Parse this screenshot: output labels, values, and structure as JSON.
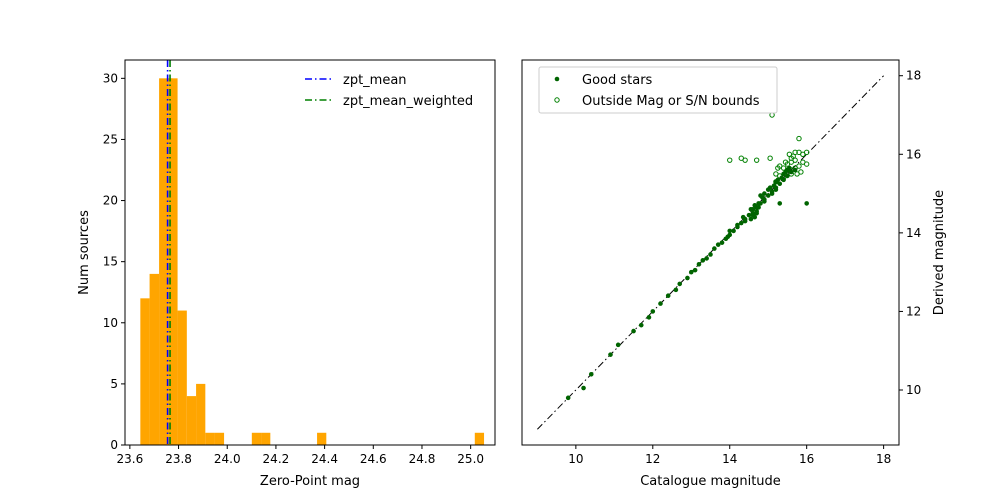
{
  "chart_data": [
    {
      "type": "bar",
      "subtype": "histogram",
      "xlabel": "Zero-Point mag",
      "ylabel": "Num sources",
      "xlim": [
        23.58,
        25.1
      ],
      "ylim": [
        0,
        31.5
      ],
      "xticks": [
        "23.6",
        "23.8",
        "24.0",
        "24.2",
        "24.4",
        "24.6",
        "24.8",
        "25.0"
      ],
      "xtick_values": [
        23.6,
        23.8,
        24.0,
        24.2,
        24.4,
        24.6,
        24.8,
        25.0
      ],
      "yticks": [
        "0",
        "5",
        "10",
        "15",
        "20",
        "25",
        "30"
      ],
      "ytick_values": [
        0,
        5,
        10,
        15,
        20,
        25,
        30
      ],
      "bar_color": "#ffa500",
      "bins": [
        {
          "x0": 23.643,
          "x1": 23.681,
          "count": 12
        },
        {
          "x0": 23.681,
          "x1": 23.72,
          "count": 14
        },
        {
          "x0": 23.72,
          "x1": 23.758,
          "count": 30
        },
        {
          "x0": 23.758,
          "x1": 23.796,
          "count": 30
        },
        {
          "x0": 23.796,
          "x1": 23.834,
          "count": 11
        },
        {
          "x0": 23.834,
          "x1": 23.872,
          "count": 4
        },
        {
          "x0": 23.872,
          "x1": 23.91,
          "count": 5
        },
        {
          "x0": 23.91,
          "x1": 23.948,
          "count": 1
        },
        {
          "x0": 23.948,
          "x1": 23.987,
          "count": 1
        },
        {
          "x0": 24.101,
          "x1": 24.139,
          "count": 1
        },
        {
          "x0": 24.139,
          "x1": 24.177,
          "count": 1
        },
        {
          "x0": 24.369,
          "x1": 24.407,
          "count": 1
        },
        {
          "x0": 25.017,
          "x1": 25.055,
          "count": 1
        }
      ],
      "lines": [
        {
          "name": "zpt_mean",
          "x": 23.755,
          "color": "#0000ff"
        },
        {
          "name": "zpt_mean_weighted",
          "x": 23.765,
          "color": "#008000"
        }
      ],
      "orange_lines": [
        23.753,
        23.759,
        23.766,
        23.772
      ],
      "legend": [
        "zpt_mean",
        "zpt_mean_weighted"
      ],
      "legend_loc": "upper right"
    },
    {
      "type": "scatter",
      "xlabel": "Catalogue magnitude",
      "ylabel": "Derived magnitude",
      "xlim": [
        8.6,
        18.4
      ],
      "ylim": [
        8.6,
        18.4
      ],
      "xticks": [
        "10",
        "12",
        "14",
        "16",
        "18"
      ],
      "xtick_values": [
        10,
        12,
        14,
        16,
        18
      ],
      "yticks": [
        "10",
        "12",
        "14",
        "16",
        "18"
      ],
      "ytick_values": [
        10,
        12,
        14,
        16,
        18
      ],
      "y_axis_side": "right",
      "reference_line": {
        "x": [
          9,
          18
        ],
        "y": [
          9,
          18
        ],
        "style": "dash-dot",
        "color": "#000000"
      },
      "legend": [
        "Good stars",
        "Outside Mag or S/N bounds"
      ],
      "legend_loc": "upper left",
      "point_color": "#006400",
      "series": [
        {
          "name": "Good stars",
          "marker": "filled",
          "points": [
            [
              9.8,
              9.8
            ],
            [
              10.2,
              10.05
            ],
            [
              10.4,
              10.4
            ],
            [
              10.9,
              10.9
            ],
            [
              11.1,
              11.15
            ],
            [
              11.5,
              11.5
            ],
            [
              11.7,
              11.65
            ],
            [
              11.9,
              11.85
            ],
            [
              12.0,
              12.0
            ],
            [
              12.2,
              12.2
            ],
            [
              12.4,
              12.4
            ],
            [
              12.6,
              12.55
            ],
            [
              12.7,
              12.7
            ],
            [
              12.9,
              12.85
            ],
            [
              13.0,
              13.0
            ],
            [
              13.1,
              13.05
            ],
            [
              13.2,
              13.2
            ],
            [
              13.3,
              13.3
            ],
            [
              13.4,
              13.35
            ],
            [
              13.5,
              13.45
            ],
            [
              13.6,
              13.6
            ],
            [
              13.7,
              13.7
            ],
            [
              13.8,
              13.75
            ],
            [
              13.9,
              13.85
            ],
            [
              14.0,
              13.95
            ],
            [
              14.1,
              14.05
            ],
            [
              14.2,
              14.15
            ],
            [
              14.3,
              14.25
            ],
            [
              14.4,
              14.35
            ],
            [
              14.5,
              14.45
            ],
            [
              14.6,
              14.6
            ],
            [
              14.7,
              14.65
            ],
            [
              14.8,
              14.75
            ],
            [
              14.9,
              14.85
            ],
            [
              15.0,
              14.95
            ],
            [
              15.1,
              15.05
            ],
            [
              15.2,
              15.15
            ],
            [
              15.3,
              15.25
            ],
            [
              15.4,
              15.35
            ],
            [
              15.5,
              15.45
            ],
            [
              15.6,
              15.55
            ],
            [
              15.7,
              15.6
            ],
            [
              14.4,
              14.3
            ],
            [
              14.6,
              14.5
            ],
            [
              14.7,
              14.55
            ],
            [
              14.75,
              14.75
            ],
            [
              14.85,
              14.9
            ],
            [
              15.0,
              15.1
            ],
            [
              15.2,
              15.3
            ],
            [
              15.4,
              15.5
            ],
            [
              15.5,
              15.6
            ],
            [
              15.3,
              14.75
            ],
            [
              16.0,
              14.75
            ],
            [
              14.2,
              14.2
            ],
            [
              14.0,
              14.05
            ],
            [
              13.95,
              13.9
            ],
            [
              14.35,
              14.4
            ],
            [
              14.55,
              14.6
            ],
            [
              14.65,
              14.7
            ],
            [
              14.8,
              14.95
            ],
            [
              14.9,
              15.0
            ],
            [
              15.05,
              15.15
            ],
            [
              15.15,
              15.2
            ],
            [
              15.25,
              15.35
            ],
            [
              15.35,
              15.4
            ],
            [
              15.45,
              15.55
            ],
            [
              15.55,
              15.65
            ],
            [
              14.6,
              14.45
            ],
            [
              14.75,
              14.65
            ],
            [
              14.9,
              14.8
            ],
            [
              15.1,
              15.0
            ],
            [
              15.2,
              15.1
            ],
            [
              14.7,
              14.5
            ],
            [
              14.65,
              14.4
            ],
            [
              14.55,
              14.35
            ]
          ]
        },
        {
          "name": "Outside Mag or S/N bounds",
          "marker": "open",
          "points": [
            [
              15.1,
              17.0
            ],
            [
              15.8,
              16.4
            ],
            [
              14.0,
              15.85
            ],
            [
              14.3,
              15.9
            ],
            [
              14.4,
              15.85
            ],
            [
              14.7,
              15.85
            ],
            [
              15.05,
              15.9
            ],
            [
              15.7,
              16.05
            ],
            [
              15.8,
              16.05
            ],
            [
              16.0,
              16.05
            ],
            [
              15.9,
              16.0
            ],
            [
              15.6,
              15.9
            ],
            [
              15.7,
              15.85
            ],
            [
              15.6,
              15.8
            ],
            [
              15.5,
              15.75
            ],
            [
              15.3,
              15.7
            ],
            [
              15.4,
              15.65
            ],
            [
              15.5,
              15.6
            ],
            [
              15.6,
              15.6
            ],
            [
              15.7,
              15.65
            ],
            [
              15.8,
              15.7
            ],
            [
              15.9,
              15.8
            ],
            [
              16.0,
              15.75
            ],
            [
              15.75,
              15.5
            ],
            [
              15.85,
              15.55
            ],
            [
              15.2,
              15.5
            ],
            [
              15.3,
              15.45
            ],
            [
              15.4,
              15.4
            ],
            [
              15.6,
              15.5
            ],
            [
              15.2,
              15.3
            ],
            [
              15.25,
              15.65
            ],
            [
              15.45,
              15.8
            ],
            [
              15.55,
              16.0
            ],
            [
              15.65,
              15.95
            ]
          ]
        }
      ]
    }
  ]
}
